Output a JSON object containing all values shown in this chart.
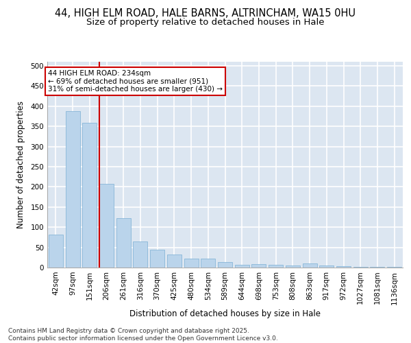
{
  "title1": "44, HIGH ELM ROAD, HALE BARNS, ALTRINCHAM, WA15 0HU",
  "title2": "Size of property relative to detached houses in Hale",
  "xlabel": "Distribution of detached houses by size in Hale",
  "ylabel": "Number of detached properties",
  "categories": [
    "42sqm",
    "97sqm",
    "151sqm",
    "206sqm",
    "261sqm",
    "316sqm",
    "370sqm",
    "425sqm",
    "480sqm",
    "534sqm",
    "589sqm",
    "644sqm",
    "698sqm",
    "753sqm",
    "808sqm",
    "863sqm",
    "917sqm",
    "972sqm",
    "1027sqm",
    "1081sqm",
    "1136sqm"
  ],
  "values": [
    82,
    388,
    358,
    208,
    122,
    65,
    45,
    33,
    22,
    22,
    13,
    7,
    8,
    7,
    5,
    10,
    5,
    3,
    2,
    1,
    2
  ],
  "bar_color": "#bad4eb",
  "bar_edge_color": "#7aafd4",
  "background_color": "#dce6f1",
  "grid_color": "#ffffff",
  "annotation_text": "44 HIGH ELM ROAD: 234sqm\n← 69% of detached houses are smaller (951)\n31% of semi-detached houses are larger (430) →",
  "annotation_box_color": "#ffffff",
  "annotation_box_edge": "#cc0000",
  "vline_color": "#cc0000",
  "ylim": [
    0,
    510
  ],
  "yticks": [
    0,
    50,
    100,
    150,
    200,
    250,
    300,
    350,
    400,
    450,
    500
  ],
  "footer": "Contains HM Land Registry data © Crown copyright and database right 2025.\nContains public sector information licensed under the Open Government Licence v3.0.",
  "title_fontsize": 10.5,
  "title2_fontsize": 9.5,
  "axis_fontsize": 8.5,
  "tick_fontsize": 7.5,
  "footer_fontsize": 6.5
}
